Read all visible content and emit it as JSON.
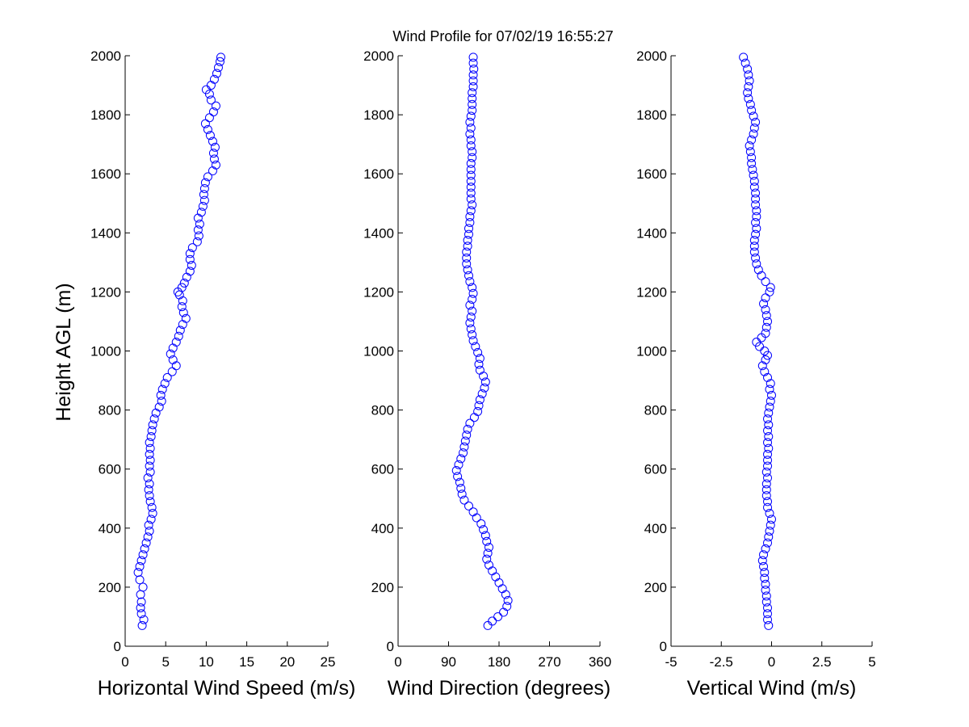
{
  "title": "Wind Profile for  07/02/19 16:55:27",
  "ylabel": "Height AGL (m)",
  "chart_data": [
    {
      "type": "scatter",
      "name": "horizontal-wind-speed",
      "xlabel": "Horizontal Wind Speed (m/s)",
      "xlim": [
        0,
        25
      ],
      "xticks": [
        0,
        5,
        10,
        15,
        20,
        25
      ],
      "xtick_labels": [
        "0",
        "5",
        "10",
        "15",
        "20",
        "25"
      ],
      "ylim": [
        0,
        2000
      ],
      "yticks": [
        0,
        200,
        400,
        600,
        800,
        1000,
        1200,
        1400,
        1600,
        1800,
        2000
      ],
      "ytick_labels": [
        "0",
        "200",
        "400",
        "600",
        "800",
        "1000",
        "1200",
        "1400",
        "1600",
        "1800",
        "2000"
      ],
      "marker": "circle-open",
      "color": "#0000ff",
      "points": [
        [
          2.1,
          70
        ],
        [
          2.3,
          90
        ],
        [
          2.0,
          110
        ],
        [
          1.9,
          130
        ],
        [
          2.0,
          150
        ],
        [
          1.9,
          175
        ],
        [
          2.2,
          200
        ],
        [
          1.8,
          225
        ],
        [
          1.6,
          250
        ],
        [
          1.8,
          270
        ],
        [
          2.0,
          290
        ],
        [
          2.2,
          310
        ],
        [
          2.4,
          330
        ],
        [
          2.6,
          350
        ],
        [
          2.8,
          370
        ],
        [
          3.0,
          390
        ],
        [
          2.9,
          410
        ],
        [
          3.2,
          430
        ],
        [
          3.4,
          450
        ],
        [
          3.3,
          470
        ],
        [
          3.1,
          490
        ],
        [
          3.0,
          510
        ],
        [
          2.9,
          530
        ],
        [
          3.0,
          550
        ],
        [
          2.8,
          570
        ],
        [
          3.1,
          590
        ],
        [
          3.0,
          610
        ],
        [
          3.1,
          630
        ],
        [
          3.0,
          650
        ],
        [
          3.1,
          670
        ],
        [
          3.0,
          690
        ],
        [
          3.2,
          710
        ],
        [
          3.3,
          730
        ],
        [
          3.4,
          750
        ],
        [
          3.6,
          770
        ],
        [
          3.8,
          790
        ],
        [
          4.2,
          810
        ],
        [
          4.5,
          830
        ],
        [
          4.4,
          850
        ],
        [
          4.6,
          870
        ],
        [
          4.9,
          890
        ],
        [
          5.2,
          910
        ],
        [
          5.8,
          930
        ],
        [
          6.3,
          950
        ],
        [
          5.9,
          970
        ],
        [
          5.6,
          990
        ],
        [
          5.9,
          1010
        ],
        [
          6.3,
          1030
        ],
        [
          6.6,
          1050
        ],
        [
          6.8,
          1070
        ],
        [
          7.1,
          1090
        ],
        [
          7.5,
          1110
        ],
        [
          7.2,
          1130
        ],
        [
          7.0,
          1150
        ],
        [
          7.1,
          1170
        ],
        [
          6.7,
          1190
        ],
        [
          6.5,
          1200
        ],
        [
          7.0,
          1215
        ],
        [
          7.3,
          1230
        ],
        [
          7.6,
          1250
        ],
        [
          8.0,
          1270
        ],
        [
          8.2,
          1290
        ],
        [
          8.0,
          1310
        ],
        [
          8.0,
          1330
        ],
        [
          8.3,
          1350
        ],
        [
          8.9,
          1370
        ],
        [
          9.1,
          1390
        ],
        [
          9.0,
          1410
        ],
        [
          9.2,
          1430
        ],
        [
          9.0,
          1450
        ],
        [
          9.4,
          1470
        ],
        [
          9.6,
          1490
        ],
        [
          9.8,
          1510
        ],
        [
          9.7,
          1530
        ],
        [
          9.8,
          1550
        ],
        [
          9.9,
          1570
        ],
        [
          10.2,
          1590
        ],
        [
          10.8,
          1610
        ],
        [
          11.2,
          1630
        ],
        [
          11.0,
          1650
        ],
        [
          10.9,
          1670
        ],
        [
          11.1,
          1690
        ],
        [
          10.8,
          1710
        ],
        [
          10.5,
          1730
        ],
        [
          10.2,
          1750
        ],
        [
          9.9,
          1770
        ],
        [
          10.4,
          1790
        ],
        [
          10.9,
          1810
        ],
        [
          11.2,
          1830
        ],
        [
          10.6,
          1850
        ],
        [
          10.4,
          1870
        ],
        [
          10.0,
          1885
        ],
        [
          10.6,
          1900
        ],
        [
          11.0,
          1920
        ],
        [
          11.3,
          1940
        ],
        [
          11.5,
          1960
        ],
        [
          11.7,
          1980
        ],
        [
          11.8,
          1995
        ]
      ]
    },
    {
      "type": "scatter",
      "name": "wind-direction",
      "xlabel": "Wind Direction (degrees)",
      "xlim": [
        0,
        360
      ],
      "xticks": [
        0,
        90,
        180,
        270,
        360
      ],
      "xtick_labels": [
        "0",
        "90",
        "180",
        "270",
        "360"
      ],
      "ylim": [
        0,
        2000
      ],
      "yticks": [
        0,
        200,
        400,
        600,
        800,
        1000,
        1200,
        1400,
        1600,
        1800,
        2000
      ],
      "ytick_labels": [
        "0",
        "200",
        "400",
        "600",
        "800",
        "1000",
        "1200",
        "1400",
        "1600",
        "1800",
        "2000"
      ],
      "marker": "circle-open",
      "color": "#0000ff",
      "points": [
        [
          160,
          70
        ],
        [
          168,
          85
        ],
        [
          178,
          100
        ],
        [
          188,
          115
        ],
        [
          194,
          135
        ],
        [
          196,
          155
        ],
        [
          192,
          175
        ],
        [
          186,
          195
        ],
        [
          180,
          215
        ],
        [
          174,
          235
        ],
        [
          168,
          255
        ],
        [
          162,
          275
        ],
        [
          158,
          295
        ],
        [
          160,
          315
        ],
        [
          162,
          335
        ],
        [
          158,
          355
        ],
        [
          156,
          375
        ],
        [
          152,
          395
        ],
        [
          148,
          415
        ],
        [
          140,
          435
        ],
        [
          134,
          455
        ],
        [
          126,
          475
        ],
        [
          118,
          495
        ],
        [
          114,
          515
        ],
        [
          112,
          535
        ],
        [
          110,
          555
        ],
        [
          106,
          575
        ],
        [
          104,
          595
        ],
        [
          108,
          615
        ],
        [
          112,
          635
        ],
        [
          116,
          655
        ],
        [
          118,
          675
        ],
        [
          120,
          695
        ],
        [
          122,
          715
        ],
        [
          124,
          735
        ],
        [
          128,
          755
        ],
        [
          136,
          775
        ],
        [
          142,
          795
        ],
        [
          144,
          815
        ],
        [
          146,
          835
        ],
        [
          150,
          855
        ],
        [
          154,
          875
        ],
        [
          156,
          895
        ],
        [
          152,
          915
        ],
        [
          146,
          935
        ],
        [
          144,
          955
        ],
        [
          146,
          975
        ],
        [
          142,
          995
        ],
        [
          138,
          1015
        ],
        [
          134,
          1035
        ],
        [
          132,
          1055
        ],
        [
          130,
          1075
        ],
        [
          128,
          1095
        ],
        [
          130,
          1115
        ],
        [
          132,
          1135
        ],
        [
          128,
          1155
        ],
        [
          132,
          1175
        ],
        [
          134,
          1195
        ],
        [
          132,
          1215
        ],
        [
          128,
          1235
        ],
        [
          126,
          1255
        ],
        [
          124,
          1275
        ],
        [
          122,
          1295
        ],
        [
          122,
          1315
        ],
        [
          122,
          1335
        ],
        [
          124,
          1355
        ],
        [
          124,
          1375
        ],
        [
          126,
          1395
        ],
        [
          126,
          1415
        ],
        [
          128,
          1435
        ],
        [
          128,
          1455
        ],
        [
          130,
          1475
        ],
        [
          132,
          1495
        ],
        [
          130,
          1515
        ],
        [
          130,
          1535
        ],
        [
          130,
          1555
        ],
        [
          130,
          1575
        ],
        [
          130,
          1595
        ],
        [
          130,
          1615
        ],
        [
          130,
          1635
        ],
        [
          132,
          1655
        ],
        [
          132,
          1675
        ],
        [
          130,
          1695
        ],
        [
          130,
          1715
        ],
        [
          128,
          1735
        ],
        [
          130,
          1755
        ],
        [
          128,
          1775
        ],
        [
          130,
          1795
        ],
        [
          132,
          1815
        ],
        [
          132,
          1835
        ],
        [
          132,
          1855
        ],
        [
          132,
          1875
        ],
        [
          134,
          1895
        ],
        [
          134,
          1915
        ],
        [
          134,
          1935
        ],
        [
          135,
          1955
        ],
        [
          134,
          1975
        ],
        [
          134,
          1995
        ]
      ]
    },
    {
      "type": "scatter",
      "name": "vertical-wind",
      "xlabel": "Vertical Wind (m/s)",
      "xlim": [
        -5,
        5
      ],
      "xticks": [
        -5,
        -2.5,
        0,
        2.5,
        5
      ],
      "xtick_labels": [
        "-5",
        "-2.5",
        "0",
        "2.5",
        "5"
      ],
      "ylim": [
        0,
        2000
      ],
      "yticks": [
        0,
        200,
        400,
        600,
        800,
        1000,
        1200,
        1400,
        1600,
        1800,
        2000
      ],
      "ytick_labels": [
        "0",
        "200",
        "400",
        "600",
        "800",
        "1000",
        "1200",
        "1400",
        "1600",
        "1800",
        "2000"
      ],
      "marker": "circle-open",
      "color": "#0000ff",
      "points": [
        [
          -0.15,
          70
        ],
        [
          -0.2,
          90
        ],
        [
          -0.2,
          110
        ],
        [
          -0.2,
          130
        ],
        [
          -0.25,
          150
        ],
        [
          -0.25,
          170
        ],
        [
          -0.3,
          190
        ],
        [
          -0.3,
          210
        ],
        [
          -0.35,
          230
        ],
        [
          -0.35,
          250
        ],
        [
          -0.4,
          270
        ],
        [
          -0.45,
          290
        ],
        [
          -0.4,
          310
        ],
        [
          -0.3,
          330
        ],
        [
          -0.2,
          350
        ],
        [
          -0.15,
          370
        ],
        [
          -0.1,
          390
        ],
        [
          -0.05,
          410
        ],
        [
          0.0,
          430
        ],
        [
          -0.1,
          450
        ],
        [
          -0.2,
          470
        ],
        [
          -0.2,
          490
        ],
        [
          -0.25,
          510
        ],
        [
          -0.25,
          530
        ],
        [
          -0.25,
          550
        ],
        [
          -0.2,
          570
        ],
        [
          -0.25,
          590
        ],
        [
          -0.2,
          610
        ],
        [
          -0.2,
          630
        ],
        [
          -0.2,
          650
        ],
        [
          -0.15,
          670
        ],
        [
          -0.2,
          690
        ],
        [
          -0.15,
          710
        ],
        [
          -0.2,
          730
        ],
        [
          -0.15,
          750
        ],
        [
          -0.2,
          770
        ],
        [
          -0.15,
          790
        ],
        [
          -0.1,
          810
        ],
        [
          -0.05,
          830
        ],
        [
          0.0,
          850
        ],
        [
          -0.1,
          870
        ],
        [
          -0.05,
          890
        ],
        [
          -0.2,
          910
        ],
        [
          -0.35,
          930
        ],
        [
          -0.45,
          950
        ],
        [
          -0.3,
          970
        ],
        [
          -0.2,
          985
        ],
        [
          -0.35,
          1000
        ],
        [
          -0.6,
          1015
        ],
        [
          -0.75,
          1030
        ],
        [
          -0.5,
          1045
        ],
        [
          -0.3,
          1060
        ],
        [
          -0.25,
          1080
        ],
        [
          -0.2,
          1100
        ],
        [
          -0.25,
          1120
        ],
        [
          -0.3,
          1140
        ],
        [
          -0.4,
          1160
        ],
        [
          -0.3,
          1180
        ],
        [
          -0.1,
          1200
        ],
        [
          -0.05,
          1215
        ],
        [
          -0.3,
          1235
        ],
        [
          -0.5,
          1255
        ],
        [
          -0.65,
          1275
        ],
        [
          -0.75,
          1295
        ],
        [
          -0.8,
          1315
        ],
        [
          -0.85,
          1335
        ],
        [
          -0.85,
          1355
        ],
        [
          -0.85,
          1375
        ],
        [
          -0.8,
          1395
        ],
        [
          -0.75,
          1415
        ],
        [
          -0.8,
          1435
        ],
        [
          -0.75,
          1455
        ],
        [
          -0.75,
          1475
        ],
        [
          -0.8,
          1495
        ],
        [
          -0.8,
          1515
        ],
        [
          -0.8,
          1535
        ],
        [
          -0.85,
          1555
        ],
        [
          -0.85,
          1575
        ],
        [
          -0.9,
          1595
        ],
        [
          -0.95,
          1615
        ],
        [
          -1.0,
          1635
        ],
        [
          -1.0,
          1655
        ],
        [
          -1.05,
          1675
        ],
        [
          -1.1,
          1695
        ],
        [
          -1.0,
          1715
        ],
        [
          -0.9,
          1735
        ],
        [
          -0.85,
          1755
        ],
        [
          -0.8,
          1775
        ],
        [
          -0.9,
          1795
        ],
        [
          -1.0,
          1815
        ],
        [
          -1.05,
          1835
        ],
        [
          -1.15,
          1855
        ],
        [
          -1.2,
          1875
        ],
        [
          -1.15,
          1895
        ],
        [
          -1.1,
          1915
        ],
        [
          -1.15,
          1935
        ],
        [
          -1.2,
          1955
        ],
        [
          -1.3,
          1975
        ],
        [
          -1.4,
          1995
        ]
      ]
    }
  ]
}
